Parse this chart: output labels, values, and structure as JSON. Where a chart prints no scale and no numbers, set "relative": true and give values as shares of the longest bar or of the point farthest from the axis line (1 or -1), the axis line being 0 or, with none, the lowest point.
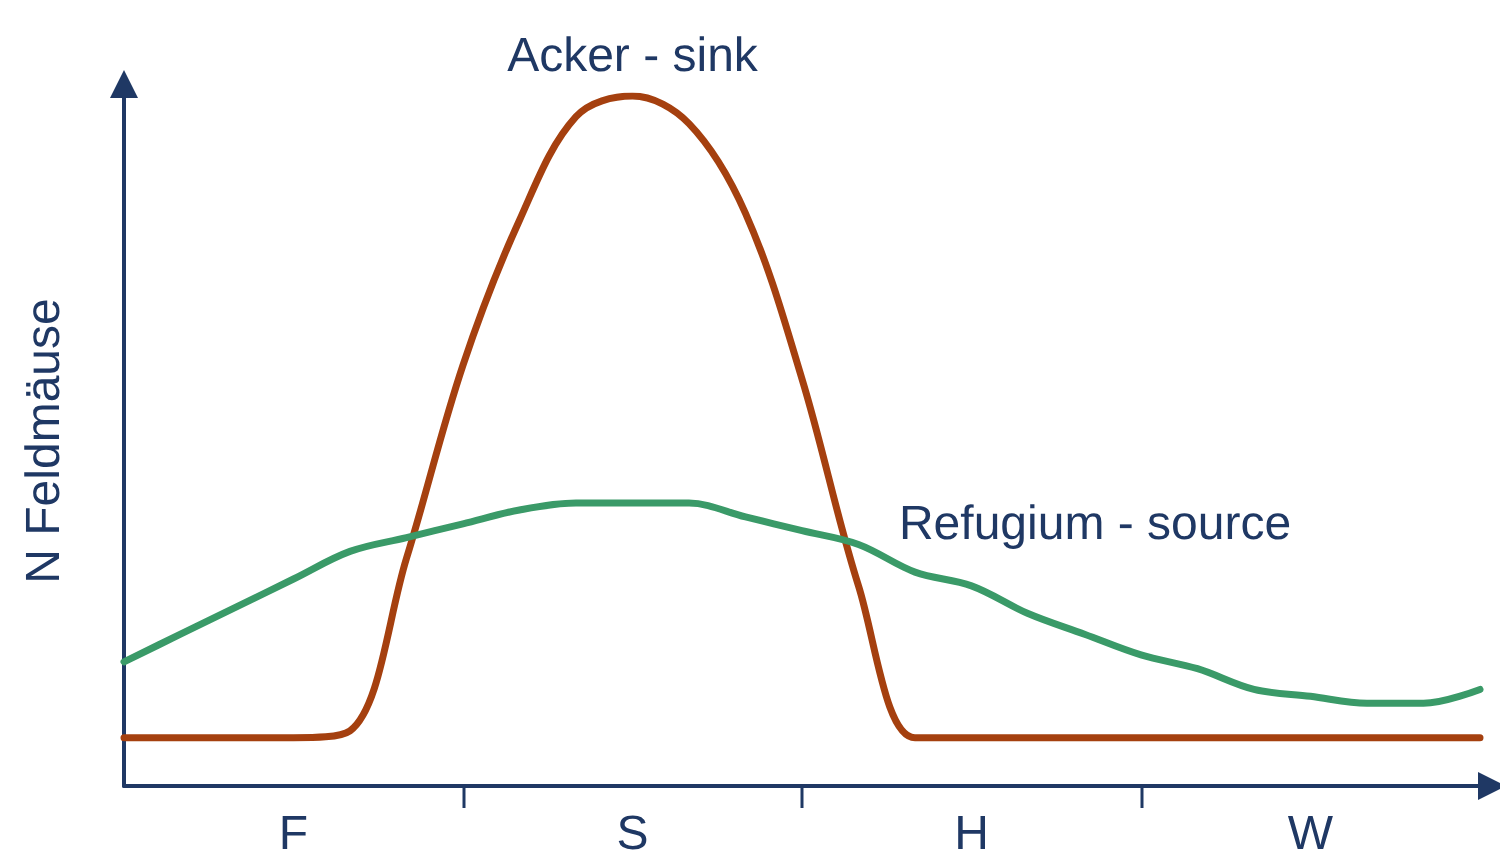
{
  "chart_data": {
    "type": "line",
    "relative": true,
    "ylabel": "N Feldmäuse",
    "categories": [
      null,
      null,
      null,
      "F",
      null,
      null,
      null,
      null,
      null,
      "S",
      null,
      null,
      null,
      null,
      null,
      "H",
      null,
      null,
      null,
      null,
      null,
      "W",
      null,
      null,
      null
    ],
    "series": [
      {
        "name": "Acker - sink",
        "color": "#a5400f",
        "values": [
          0.07,
          0.07,
          0.07,
          0.07,
          0.08,
          0.33,
          0.61,
          0.82,
          0.97,
          1,
          0.96,
          0.83,
          0.59,
          0.29,
          0.07,
          0.07,
          0.07,
          0.07,
          0.07,
          0.07,
          0.07,
          0.07,
          0.07,
          0.07,
          0.07
        ]
      },
      {
        "name": "Refugium - source",
        "color": "#3a9a68",
        "values": [
          0.18,
          0.22,
          0.26,
          0.3,
          0.34,
          0.36,
          0.38,
          0.4,
          0.41,
          0.41,
          0.41,
          0.39,
          0.37,
          0.35,
          0.31,
          0.29,
          0.25,
          0.22,
          0.19,
          0.17,
          0.14,
          0.13,
          0.12,
          0.12,
          0.14
        ]
      }
    ]
  }
}
